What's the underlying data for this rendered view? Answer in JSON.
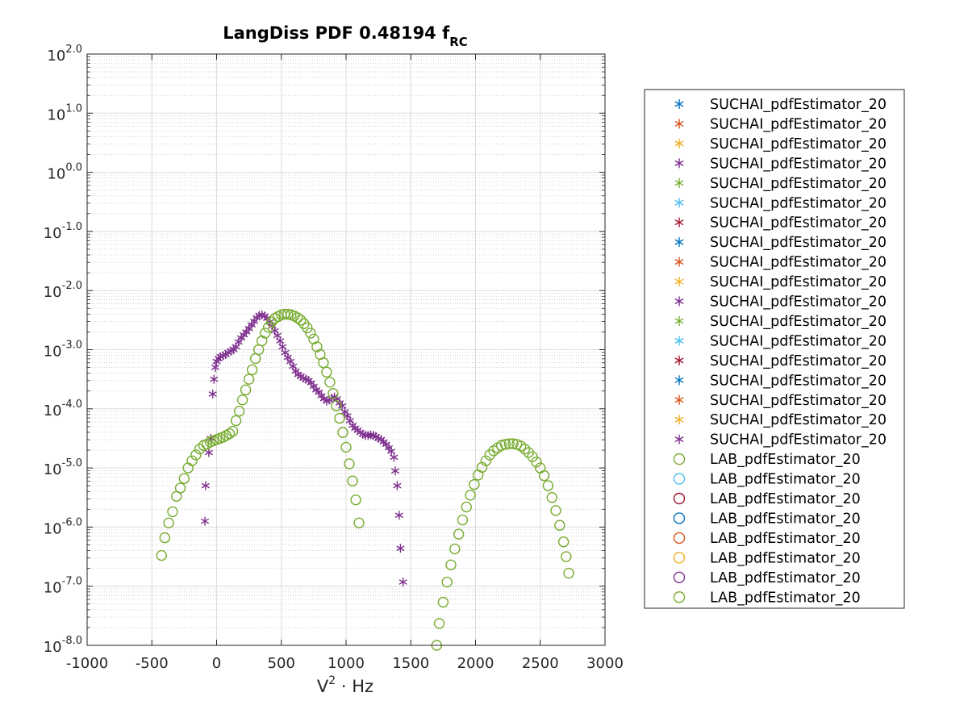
{
  "chart_data": {
    "type": "scatter",
    "title": "LangDiss PDF 0.48194 f",
    "title_subscript": "RC",
    "xlabel_base": "V",
    "xlabel_sup": "2",
    "xlabel_rest": " · Hz",
    "ylabel": "",
    "xlim": [
      -1000,
      3000
    ],
    "ylim_log10": [
      -8,
      2
    ],
    "y_scale": "log",
    "grid": true,
    "minor_grid": true,
    "legend_position": "outside-right",
    "x_ticks": [
      {
        "value": -1000,
        "label": "-1000"
      },
      {
        "value": -500,
        "label": "-500"
      },
      {
        "value": 0,
        "label": "0"
      },
      {
        "value": 500,
        "label": "500"
      },
      {
        "value": 1000,
        "label": "1000"
      },
      {
        "value": 1500,
        "label": "1500"
      },
      {
        "value": 2000,
        "label": "2000"
      },
      {
        "value": 2500,
        "label": "2500"
      },
      {
        "value": 3000,
        "label": "3000"
      }
    ],
    "y_ticks": [
      {
        "value": 2,
        "base": "10",
        "exp": "2.0"
      },
      {
        "value": 1,
        "base": "10",
        "exp": "1.0"
      },
      {
        "value": 0,
        "base": "10",
        "exp": "0.0"
      },
      {
        "value": -1,
        "base": "10",
        "exp": "-1.0"
      },
      {
        "value": -2,
        "base": "10",
        "exp": "-2.0"
      },
      {
        "value": -3,
        "base": "10",
        "exp": "-3.0"
      },
      {
        "value": -4,
        "base": "10",
        "exp": "-4.0"
      },
      {
        "value": -5,
        "base": "10",
        "exp": "-5.0"
      },
      {
        "value": -6,
        "base": "10",
        "exp": "-6.0"
      },
      {
        "value": -7,
        "base": "10",
        "exp": "-7.0"
      },
      {
        "value": -8,
        "base": "10",
        "exp": "-8.0"
      }
    ],
    "legend": [
      {
        "label": "SUCHAI_pdfEstimator_20",
        "marker": "star",
        "color": "#0072BD"
      },
      {
        "label": "SUCHAI_pdfEstimator_20",
        "marker": "star",
        "color": "#D95319"
      },
      {
        "label": "SUCHAI_pdfEstimator_20",
        "marker": "star",
        "color": "#EDB120"
      },
      {
        "label": "SUCHAI_pdfEstimator_20",
        "marker": "star",
        "color": "#7E2F8E"
      },
      {
        "label": "SUCHAI_pdfEstimator_20",
        "marker": "star",
        "color": "#77AC30"
      },
      {
        "label": "SUCHAI_pdfEstimator_20",
        "marker": "star",
        "color": "#4DBEEE"
      },
      {
        "label": "SUCHAI_pdfEstimator_20",
        "marker": "star",
        "color": "#A2142F"
      },
      {
        "label": "SUCHAI_pdfEstimator_20",
        "marker": "star",
        "color": "#0072BD"
      },
      {
        "label": "SUCHAI_pdfEstimator_20",
        "marker": "star",
        "color": "#D95319"
      },
      {
        "label": "SUCHAI_pdfEstimator_20",
        "marker": "star",
        "color": "#EDB120"
      },
      {
        "label": "SUCHAI_pdfEstimator_20",
        "marker": "star",
        "color": "#7E2F8E"
      },
      {
        "label": "SUCHAI_pdfEstimator_20",
        "marker": "star",
        "color": "#77AC30"
      },
      {
        "label": "SUCHAI_pdfEstimator_20",
        "marker": "star",
        "color": "#4DBEEE"
      },
      {
        "label": "SUCHAI_pdfEstimator_20",
        "marker": "star",
        "color": "#A2142F"
      },
      {
        "label": "SUCHAI_pdfEstimator_20",
        "marker": "star",
        "color": "#0072BD"
      },
      {
        "label": "SUCHAI_pdfEstimator_20",
        "marker": "star",
        "color": "#D95319"
      },
      {
        "label": "SUCHAI_pdfEstimator_20",
        "marker": "star",
        "color": "#EDB120"
      },
      {
        "label": "SUCHAI_pdfEstimator_20",
        "marker": "star",
        "color": "#7E2F8E"
      },
      {
        "label": "LAB_pdfEstimator_20",
        "marker": "circle",
        "color": "#77AC30"
      },
      {
        "label": "LAB_pdfEstimator_20",
        "marker": "circle",
        "color": "#4DBEEE"
      },
      {
        "label": "LAB_pdfEstimator_20",
        "marker": "circle",
        "color": "#A2142F"
      },
      {
        "label": "LAB_pdfEstimator_20",
        "marker": "circle",
        "color": "#0072BD"
      },
      {
        "label": "LAB_pdfEstimator_20",
        "marker": "circle",
        "color": "#D95319"
      },
      {
        "label": "LAB_pdfEstimator_20",
        "marker": "circle",
        "color": "#EDB120"
      },
      {
        "label": "LAB_pdfEstimator_20",
        "marker": "circle",
        "color": "#7E2F8E"
      },
      {
        "label": "LAB_pdfEstimator_20",
        "marker": "circle",
        "color": "#77AC30"
      }
    ],
    "series": [
      {
        "marker": "star",
        "color": "#7E2F8E",
        "points": [
          [
            -90,
            -5.9
          ],
          [
            -85,
            -5.3
          ],
          [
            -60,
            -4.74
          ],
          [
            -45,
            -4.5
          ],
          [
            -30,
            -3.75
          ],
          [
            -20,
            -3.5
          ],
          [
            -10,
            -3.3
          ],
          [
            0,
            -3.2
          ],
          [
            15,
            -3.15
          ],
          [
            30,
            -3.12
          ],
          [
            50,
            -3.1
          ],
          [
            70,
            -3.08
          ],
          [
            90,
            -3.05
          ],
          [
            110,
            -3.02
          ],
          [
            130,
            -3.0
          ],
          [
            150,
            -2.95
          ],
          [
            170,
            -2.87
          ],
          [
            190,
            -2.8
          ],
          [
            210,
            -2.75
          ],
          [
            230,
            -2.7
          ],
          [
            250,
            -2.64
          ],
          [
            270,
            -2.58
          ],
          [
            290,
            -2.52
          ],
          [
            310,
            -2.46
          ],
          [
            330,
            -2.42
          ],
          [
            350,
            -2.41
          ],
          [
            370,
            -2.43
          ],
          [
            390,
            -2.47
          ],
          [
            410,
            -2.53
          ],
          [
            430,
            -2.6
          ],
          [
            450,
            -2.68
          ],
          [
            470,
            -2.76
          ],
          [
            490,
            -2.85
          ],
          [
            510,
            -2.95
          ],
          [
            530,
            -3.05
          ],
          [
            550,
            -3.13
          ],
          [
            570,
            -3.2
          ],
          [
            590,
            -3.28
          ],
          [
            610,
            -3.36
          ],
          [
            630,
            -3.42
          ],
          [
            650,
            -3.45
          ],
          [
            670,
            -3.48
          ],
          [
            690,
            -3.5
          ],
          [
            710,
            -3.52
          ],
          [
            730,
            -3.56
          ],
          [
            750,
            -3.62
          ],
          [
            770,
            -3.68
          ],
          [
            790,
            -3.72
          ],
          [
            810,
            -3.78
          ],
          [
            830,
            -3.83
          ],
          [
            850,
            -3.87
          ],
          [
            870,
            -3.85
          ],
          [
            890,
            -3.82
          ],
          [
            910,
            -3.8
          ],
          [
            930,
            -3.83
          ],
          [
            950,
            -3.9
          ],
          [
            970,
            -3.95
          ],
          [
            990,
            -4.05
          ],
          [
            1010,
            -4.12
          ],
          [
            1030,
            -4.2
          ],
          [
            1050,
            -4.28
          ],
          [
            1070,
            -4.33
          ],
          [
            1090,
            -4.36
          ],
          [
            1110,
            -4.4
          ],
          [
            1130,
            -4.43
          ],
          [
            1150,
            -4.45
          ],
          [
            1170,
            -4.45
          ],
          [
            1190,
            -4.44
          ],
          [
            1210,
            -4.45
          ],
          [
            1230,
            -4.47
          ],
          [
            1250,
            -4.5
          ],
          [
            1270,
            -4.52
          ],
          [
            1290,
            -4.56
          ],
          [
            1310,
            -4.6
          ],
          [
            1330,
            -4.66
          ],
          [
            1350,
            -4.72
          ],
          [
            1370,
            -4.82
          ],
          [
            1380,
            -5.05
          ],
          [
            1395,
            -5.3
          ],
          [
            1410,
            -5.8
          ],
          [
            1420,
            -6.36
          ],
          [
            1440,
            -6.93
          ]
        ]
      },
      {
        "marker": "circle",
        "color": "#77AC30",
        "points": [
          [
            -425,
            -6.48
          ],
          [
            -400,
            -6.18
          ],
          [
            -370,
            -5.93
          ],
          [
            -340,
            -5.74
          ],
          [
            -310,
            -5.48
          ],
          [
            -280,
            -5.34
          ],
          [
            -250,
            -5.18
          ],
          [
            -220,
            -5.0
          ],
          [
            -190,
            -4.88
          ],
          [
            -160,
            -4.78
          ],
          [
            -130,
            -4.68
          ],
          [
            -100,
            -4.62
          ],
          [
            -75,
            -4.6
          ],
          [
            -50,
            -4.56
          ],
          [
            -25,
            -4.54
          ],
          [
            0,
            -4.52
          ],
          [
            25,
            -4.5
          ],
          [
            50,
            -4.48
          ],
          [
            75,
            -4.45
          ],
          [
            100,
            -4.42
          ],
          [
            125,
            -4.38
          ],
          [
            150,
            -4.2
          ],
          [
            175,
            -4.04
          ],
          [
            200,
            -3.85
          ],
          [
            225,
            -3.68
          ],
          [
            250,
            -3.5
          ],
          [
            275,
            -3.34
          ],
          [
            300,
            -3.15
          ],
          [
            325,
            -3.0
          ],
          [
            350,
            -2.85
          ],
          [
            375,
            -2.72
          ],
          [
            400,
            -2.62
          ],
          [
            425,
            -2.53
          ],
          [
            450,
            -2.47
          ],
          [
            475,
            -2.44
          ],
          [
            500,
            -2.41
          ],
          [
            525,
            -2.4
          ],
          [
            550,
            -2.4
          ],
          [
            575,
            -2.41
          ],
          [
            600,
            -2.43
          ],
          [
            625,
            -2.46
          ],
          [
            650,
            -2.5
          ],
          [
            675,
            -2.56
          ],
          [
            700,
            -2.63
          ],
          [
            725,
            -2.72
          ],
          [
            750,
            -2.82
          ],
          [
            775,
            -2.95
          ],
          [
            800,
            -3.08
          ],
          [
            825,
            -3.22
          ],
          [
            850,
            -3.38
          ],
          [
            875,
            -3.55
          ],
          [
            900,
            -3.74
          ],
          [
            925,
            -3.95
          ],
          [
            950,
            -4.16
          ],
          [
            975,
            -4.4
          ],
          [
            1000,
            -4.65
          ],
          [
            1025,
            -4.93
          ],
          [
            1050,
            -5.22
          ],
          [
            1075,
            -5.54
          ],
          [
            1100,
            -5.93
          ]
        ]
      },
      {
        "marker": "circle",
        "color": "#77AC30",
        "points": [
          [
            1700,
            -8.0
          ],
          [
            1720,
            -7.63
          ],
          [
            1750,
            -7.27
          ],
          [
            1780,
            -6.93
          ],
          [
            1810,
            -6.64
          ],
          [
            1840,
            -6.37
          ],
          [
            1870,
            -6.12
          ],
          [
            1900,
            -5.88
          ],
          [
            1930,
            -5.66
          ],
          [
            1960,
            -5.46
          ],
          [
            1990,
            -5.28
          ],
          [
            2020,
            -5.12
          ],
          [
            2050,
            -4.99
          ],
          [
            2080,
            -4.88
          ],
          [
            2110,
            -4.78
          ],
          [
            2140,
            -4.71
          ],
          [
            2170,
            -4.66
          ],
          [
            2200,
            -4.62
          ],
          [
            2230,
            -4.6
          ],
          [
            2260,
            -4.59
          ],
          [
            2290,
            -4.59
          ],
          [
            2320,
            -4.6
          ],
          [
            2350,
            -4.63
          ],
          [
            2380,
            -4.68
          ],
          [
            2410,
            -4.74
          ],
          [
            2440,
            -4.81
          ],
          [
            2470,
            -4.9
          ],
          [
            2500,
            -5.0
          ],
          [
            2530,
            -5.13
          ],
          [
            2560,
            -5.3
          ],
          [
            2590,
            -5.5
          ],
          [
            2620,
            -5.72
          ],
          [
            2650,
            -5.97
          ],
          [
            2680,
            -6.25
          ],
          [
            2700,
            -6.5
          ],
          [
            2720,
            -6.78
          ]
        ]
      }
    ]
  }
}
